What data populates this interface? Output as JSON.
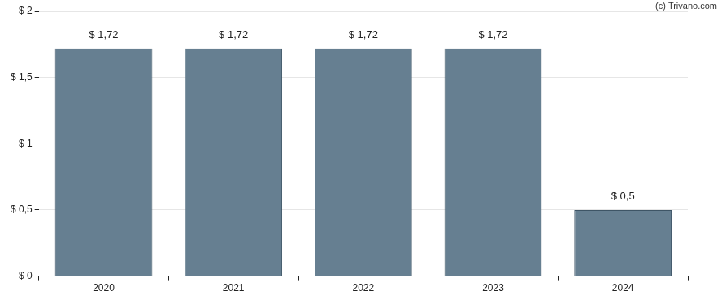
{
  "chart_data": {
    "type": "bar",
    "annotation": "(c) Trivano.com",
    "categories": [
      "2020",
      "2021",
      "2022",
      "2023",
      "2024"
    ],
    "values": [
      1.72,
      1.72,
      1.72,
      1.72,
      0.5
    ],
    "value_labels": [
      "$ 1,72",
      "$ 1,72",
      "$ 1,72",
      "$ 1,72",
      "$ 0,5"
    ],
    "data_labels": true,
    "color": "#667f91",
    "ylim": [
      0,
      2
    ],
    "yticks": [
      {
        "value": 0,
        "label": "$ 0"
      },
      {
        "value": 0.5,
        "label": "$ 0,5"
      },
      {
        "value": 1,
        "label": "$ 1"
      },
      {
        "value": 1.5,
        "label": "$ 1,5"
      },
      {
        "value": 2,
        "label": "$ 2"
      }
    ],
    "grid": true
  }
}
